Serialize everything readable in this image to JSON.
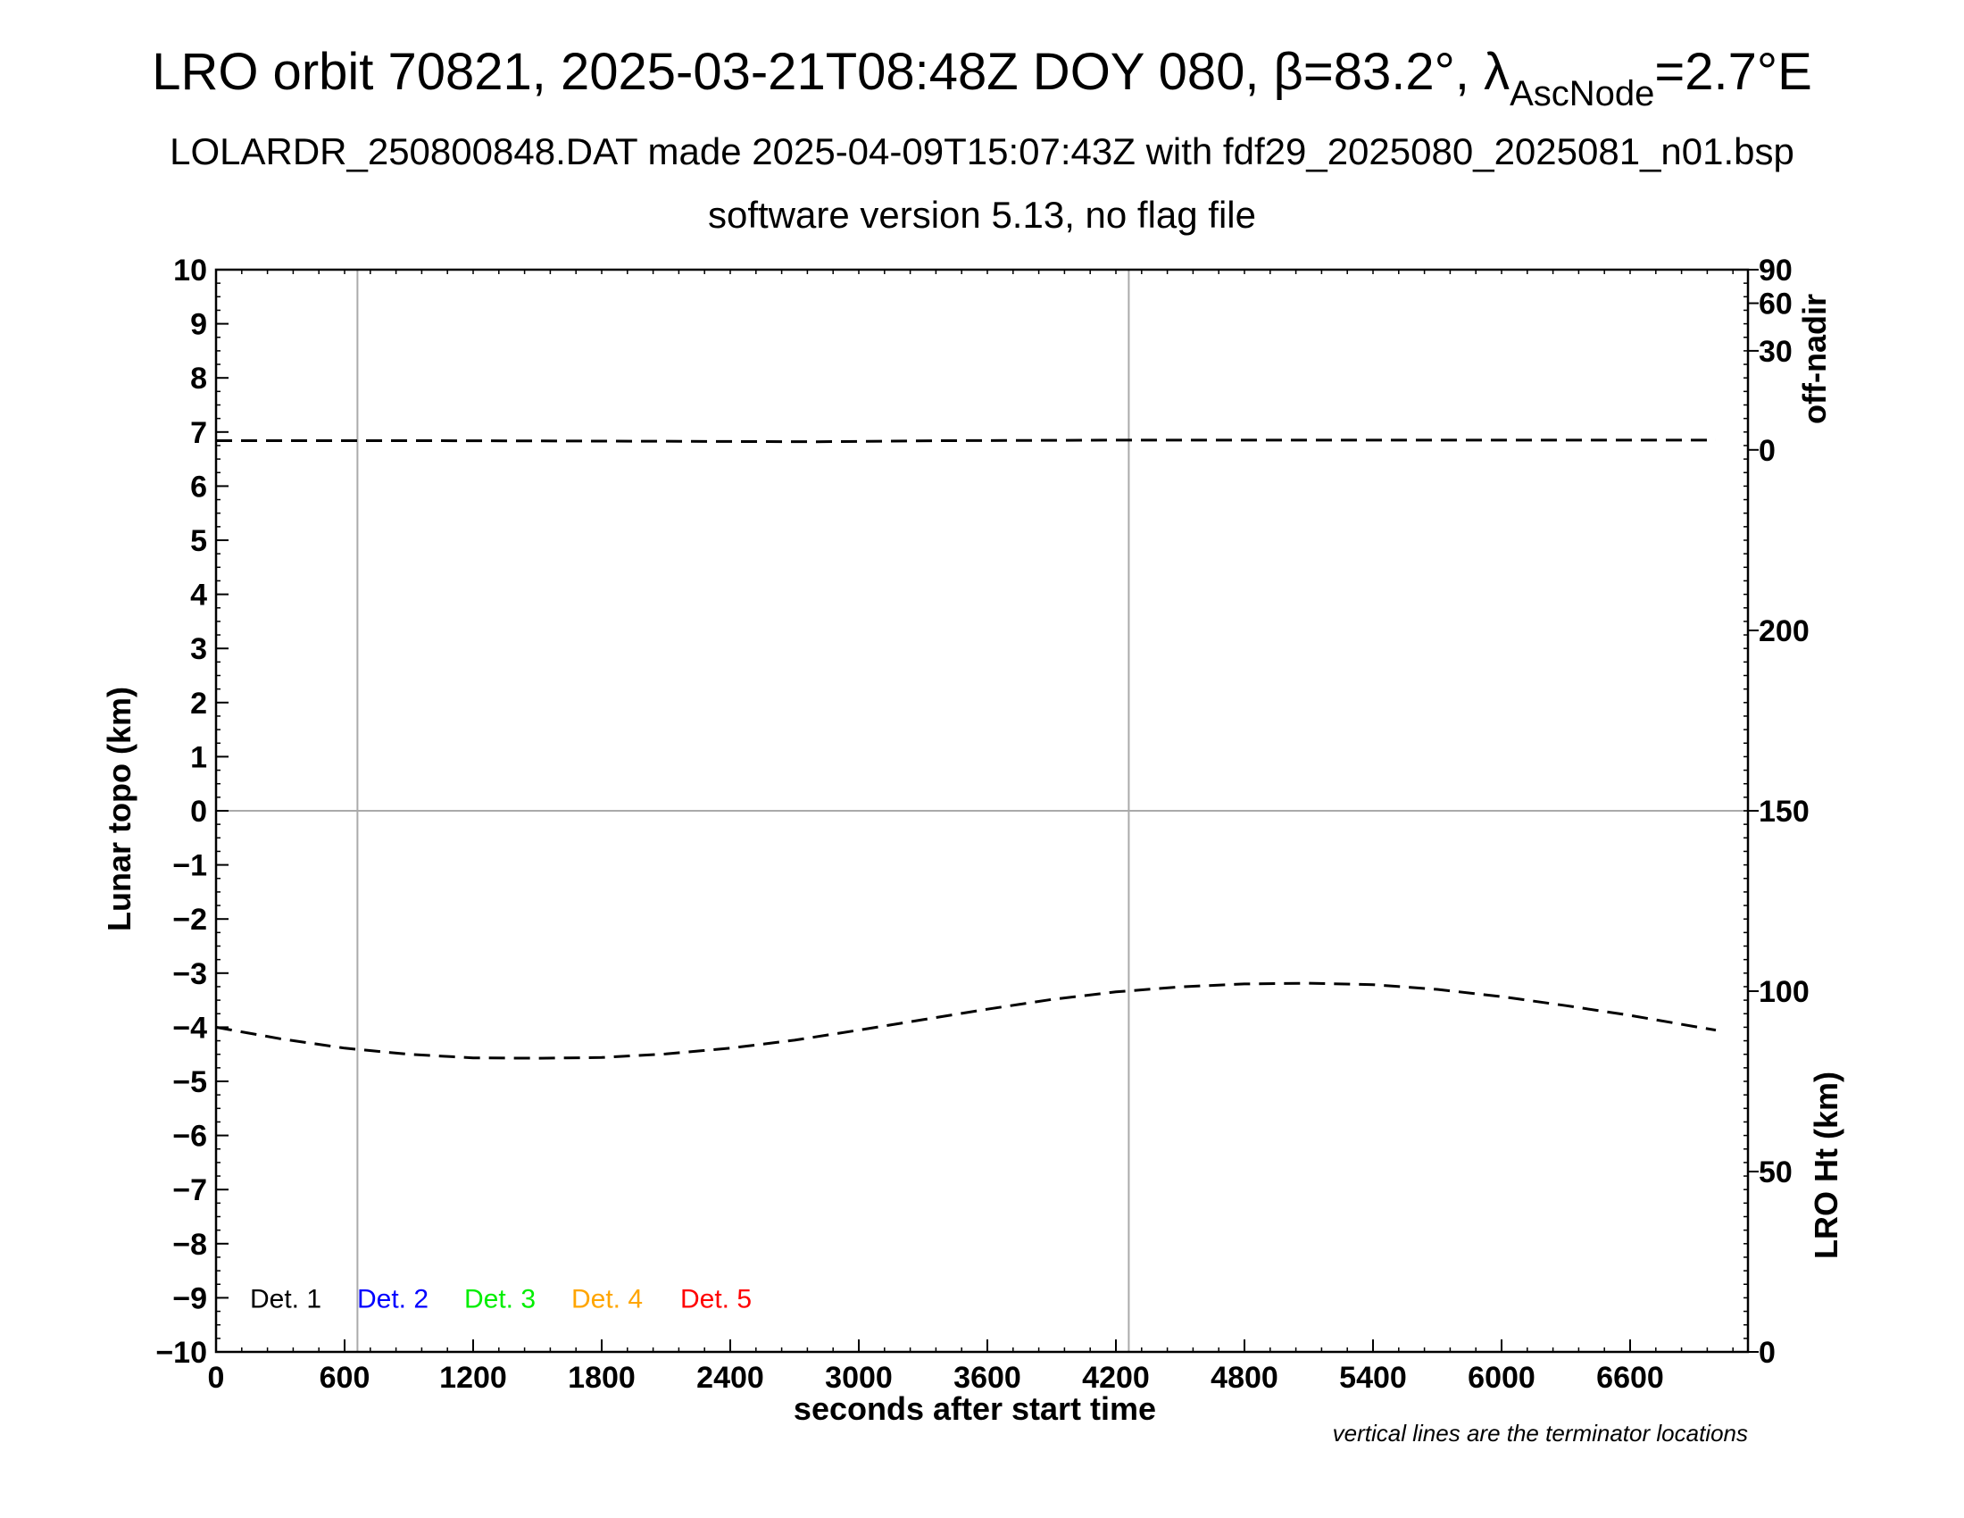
{
  "titles": {
    "main_prefix": "LRO orbit 70821, 2025-03-21T08:48Z DOY 080, β=83.2°, λ",
    "main_sub": "AscNode",
    "main_suffix": "=2.7°E",
    "line2": "LOLARDR_250800848.DAT made 2025-04-09T15:07:43Z with fdf29_2025080_2025081_n01.bsp",
    "line3": "software version 5.13, no flag file"
  },
  "footnote": "vertical lines are the terminator locations",
  "chart_data": {
    "type": "line",
    "xlabel": "seconds after start time",
    "ylabel": "Lunar topo (km)",
    "xlim": [
      0,
      7150
    ],
    "ylim": [
      -10,
      10
    ],
    "xticks": [
      0,
      600,
      1200,
      1800,
      2400,
      3000,
      3600,
      4200,
      4800,
      5400,
      6000,
      6600
    ],
    "yticks": [
      10,
      9,
      8,
      7,
      6,
      5,
      4,
      3,
      2,
      1,
      0,
      -1,
      -2,
      -3,
      -4,
      -5,
      -6,
      -7,
      -8,
      -9,
      -10
    ],
    "ytick_labels": [
      "10",
      "9",
      "8",
      "7",
      "6",
      "5",
      "4",
      "3",
      "2",
      "1",
      "0",
      "−1",
      "−2",
      "−3",
      "−4",
      "−5",
      "−6",
      "−7",
      "−8",
      "−9",
      "−10"
    ],
    "terminators": [
      660,
      4260
    ],
    "right_axis_offnadir": {
      "label": "off-nadir",
      "ticks": [
        {
          "label": "90",
          "topo": 10
        },
        {
          "label": "60",
          "topo": 9.38
        },
        {
          "label": "30",
          "topo": 8.5
        },
        {
          "label": "0",
          "topo": 6.67
        }
      ]
    },
    "right_axis_height": {
      "label": "LRO Ht (km)",
      "ticks": [
        {
          "label": "200",
          "value": 200
        },
        {
          "label": "150",
          "value": 150
        },
        {
          "label": "100",
          "value": 100
        },
        {
          "label": "50",
          "value": 50
        },
        {
          "label": "0",
          "value": 0
        }
      ],
      "range": [
        0,
        300
      ]
    },
    "series": [
      {
        "name": "off-nadir",
        "axis": "topo",
        "style": "dashed",
        "color": "#000000",
        "x": [
          0,
          1000,
          2000,
          2800,
          3400,
          4200,
          5000,
          6000,
          7000
        ],
        "y": [
          6.84,
          6.84,
          6.83,
          6.82,
          6.84,
          6.85,
          6.85,
          6.85,
          6.85
        ]
      },
      {
        "name": "LRO Ht",
        "axis": "height",
        "style": "dashed",
        "color": "#000000",
        "x": [
          0,
          300,
          600,
          900,
          1200,
          1500,
          1800,
          2100,
          2400,
          2700,
          3000,
          3300,
          3600,
          3900,
          4200,
          4500,
          4800,
          5100,
          5400,
          5700,
          6000,
          6300,
          6600,
          6900,
          7000
        ],
        "y": [
          90,
          86.8,
          84.2,
          82.5,
          81.5,
          81.4,
          81.6,
          82.6,
          84.2,
          86.4,
          89.2,
          92.1,
          95.0,
          97.7,
          99.8,
          101.2,
          102.0,
          102.2,
          101.8,
          100.5,
          98.5,
          96.0,
          93.3,
          90.2,
          89.2
        ]
      }
    ],
    "legend": {
      "placement": "bottom-left",
      "entries": [
        {
          "label": "Det. 1",
          "color": "#000000"
        },
        {
          "label": "Det. 2",
          "color": "#0000ff"
        },
        {
          "label": "Det. 3",
          "color": "#00ee00"
        },
        {
          "label": "Det. 4",
          "color": "#ffa500"
        },
        {
          "label": "Det. 5",
          "color": "#ff0000"
        }
      ]
    },
    "grid": false
  }
}
